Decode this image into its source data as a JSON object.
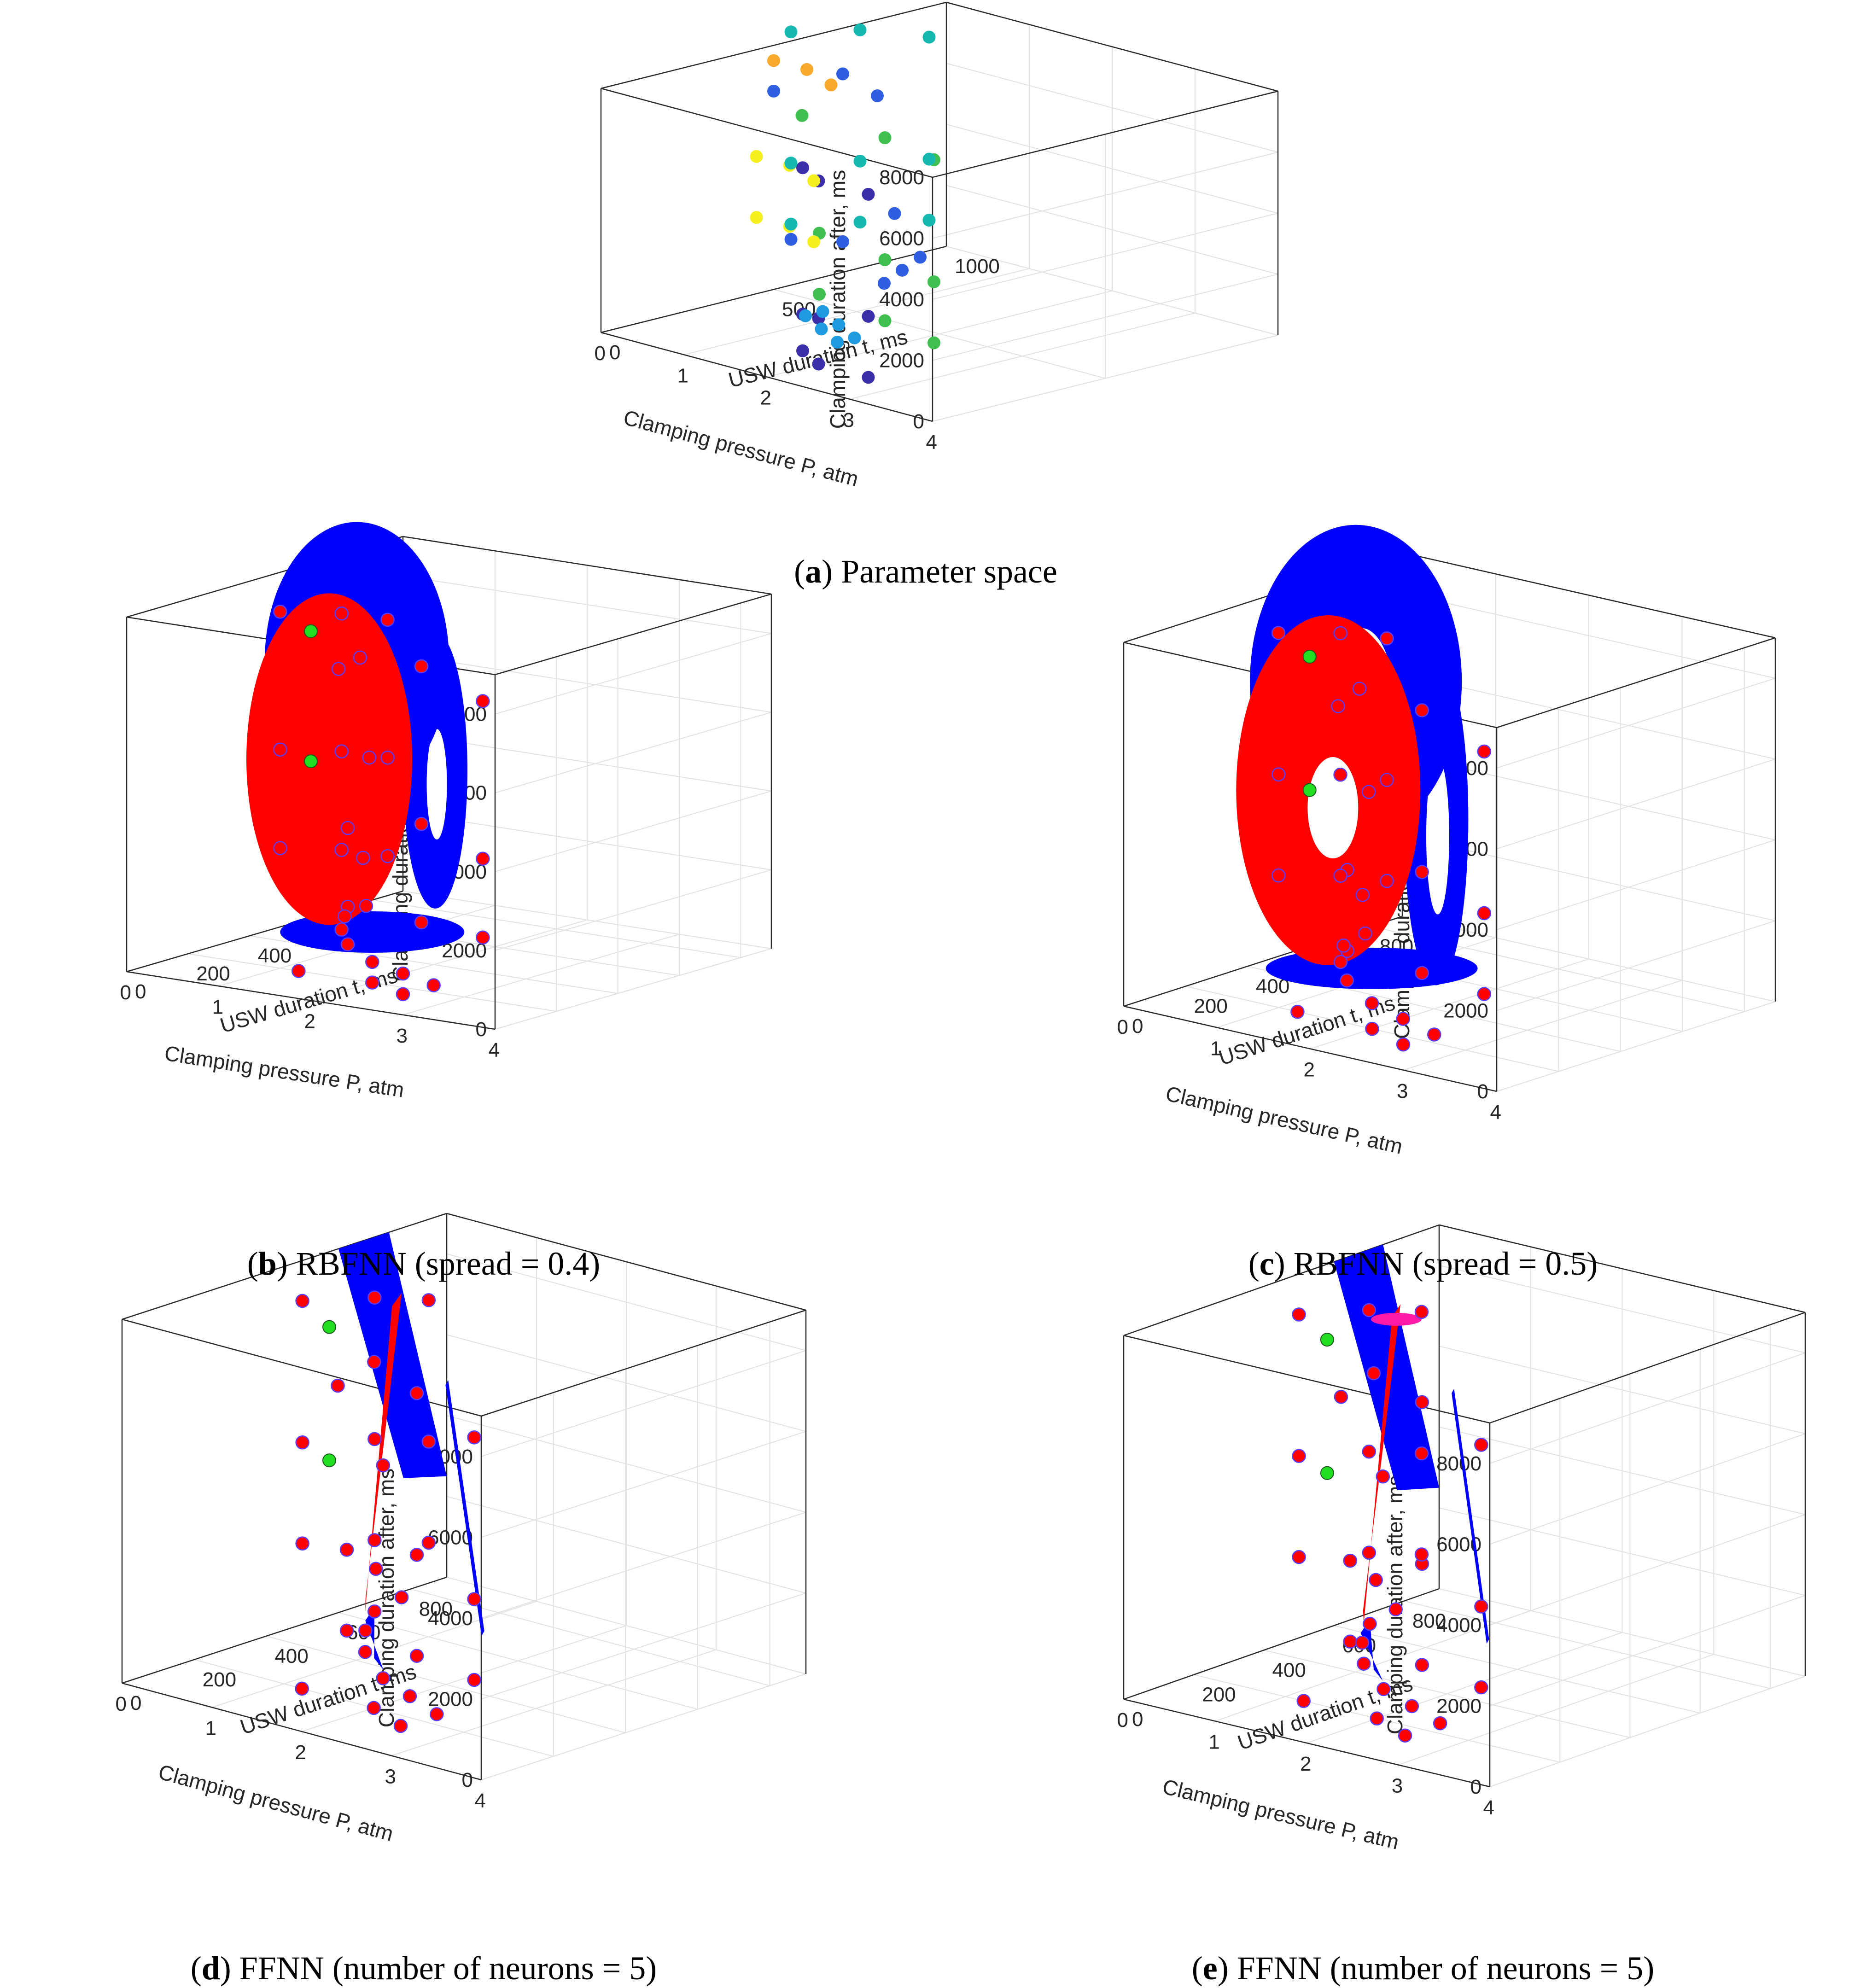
{
  "chart_data": [
    {
      "panel": "a",
      "type": "scatter",
      "caption": {
        "letter": "a",
        "text": "Parameter space"
      },
      "xlabel": "Clamping pressure P, atm",
      "ylabel": "USW duration t, ms",
      "zlabel": "Clamping duration after, ms",
      "xlim": [
        0,
        4
      ],
      "ylim": [
        0,
        1000
      ],
      "zlim": [
        0,
        8000
      ],
      "xticks": [
        "0",
        "1",
        "2",
        "3",
        "4"
      ],
      "yticks": [
        "0",
        "500",
        "1000"
      ],
      "zticks": [
        "0",
        "2000",
        "4000",
        "6000",
        "8000"
      ],
      "grid": true,
      "points": [
        {
          "x": 3.6,
          "y": 100,
          "z": 8000,
          "c": "#3fbf4f"
        },
        {
          "x": 2.8,
          "y": 150,
          "z": 8000,
          "c": "#3fbf4f"
        },
        {
          "x": 1.8,
          "y": 150,
          "z": 8000,
          "c": "#3fbf4f"
        },
        {
          "x": 3.6,
          "y": 100,
          "z": 4000,
          "c": "#3fbf4f"
        },
        {
          "x": 2.8,
          "y": 150,
          "z": 4000,
          "c": "#3fbf4f"
        },
        {
          "x": 1.8,
          "y": 200,
          "z": 4000,
          "c": "#3fbf4f"
        },
        {
          "x": 3.6,
          "y": 100,
          "z": 2000,
          "c": "#3fbf4f"
        },
        {
          "x": 2.8,
          "y": 150,
          "z": 2000,
          "c": "#3fbf4f"
        },
        {
          "x": 1.8,
          "y": 200,
          "z": 2000,
          "c": "#3fbf4f"
        },
        {
          "x": 2.6,
          "y": 150,
          "z": 6000,
          "c": "#3a2fa8"
        },
        {
          "x": 2.0,
          "y": 150,
          "z": 6000,
          "c": "#3a2fa8"
        },
        {
          "x": 1.6,
          "y": 200,
          "z": 6000,
          "c": "#3a2fa8"
        },
        {
          "x": 2.6,
          "y": 150,
          "z": 2000,
          "c": "#3a2fa8"
        },
        {
          "x": 2.0,
          "y": 150,
          "z": 1500,
          "c": "#3a2fa8"
        },
        {
          "x": 1.6,
          "y": 200,
          "z": 1200,
          "c": "#3a2fa8"
        },
        {
          "x": 2.6,
          "y": 150,
          "z": 0,
          "c": "#3a2fa8"
        },
        {
          "x": 2.0,
          "y": 150,
          "z": 0,
          "c": "#3a2fa8"
        },
        {
          "x": 1.6,
          "y": 200,
          "z": 0,
          "c": "#3a2fa8"
        },
        {
          "x": 0.9,
          "y": 450,
          "z": 7500,
          "c": "#f9a92b"
        },
        {
          "x": 0.4,
          "y": 500,
          "z": 7500,
          "c": "#f9a92b"
        },
        {
          "x": 0.0,
          "y": 500,
          "z": 7500,
          "c": "#f9a92b"
        },
        {
          "x": 0.9,
          "y": 400,
          "z": 4500,
          "c": "#f7f020"
        },
        {
          "x": 0.4,
          "y": 450,
          "z": 4500,
          "c": "#f7f020"
        },
        {
          "x": 0.0,
          "y": 450,
          "z": 4500,
          "c": "#f7f020"
        },
        {
          "x": 0.9,
          "y": 400,
          "z": 2500,
          "c": "#f7f020"
        },
        {
          "x": 0.4,
          "y": 450,
          "z": 2500,
          "c": "#f7f020"
        },
        {
          "x": 0.0,
          "y": 450,
          "z": 2500,
          "c": "#f7f020"
        },
        {
          "x": 1.6,
          "y": 300,
          "z": 0,
          "c": "#1e9be0"
        },
        {
          "x": 1.2,
          "y": 350,
          "z": 0,
          "c": "#1e9be0"
        },
        {
          "x": 0.8,
          "y": 400,
          "z": 0,
          "c": "#1e9be0"
        },
        {
          "x": 1.6,
          "y": 350,
          "z": 0,
          "c": "#1e9be0"
        },
        {
          "x": 1.2,
          "y": 400,
          "z": 0,
          "c": "#1e9be0"
        },
        {
          "x": 0.8,
          "y": 450,
          "z": 0,
          "c": "#1e9be0"
        },
        {
          "x": 0.0,
          "y": 500,
          "z": 6500,
          "c": "#2f5fe0"
        },
        {
          "x": 0.0,
          "y": 700,
          "z": 6500,
          "c": "#2f5fe0"
        },
        {
          "x": 0.0,
          "y": 800,
          "z": 5500,
          "c": "#2f5fe0"
        },
        {
          "x": 0.0,
          "y": 550,
          "z": 1500,
          "c": "#2f5fe0"
        },
        {
          "x": 0.0,
          "y": 700,
          "z": 1000,
          "c": "#2f5fe0"
        },
        {
          "x": 0.0,
          "y": 850,
          "z": 1500,
          "c": "#2f5fe0"
        },
        {
          "x": 0.5,
          "y": 700,
          "z": 0,
          "c": "#2f5fe0"
        },
        {
          "x": 0.3,
          "y": 800,
          "z": 0,
          "c": "#2f5fe0"
        },
        {
          "x": 0.1,
          "y": 900,
          "z": 0,
          "c": "#2f5fe0"
        },
        {
          "x": 0.0,
          "y": 550,
          "z": 8300,
          "c": "#16b8b0"
        },
        {
          "x": 0.0,
          "y": 750,
          "z": 7800,
          "c": "#16b8b0"
        },
        {
          "x": 0.0,
          "y": 950,
          "z": 7000,
          "c": "#16b8b0"
        },
        {
          "x": 0.0,
          "y": 550,
          "z": 4000,
          "c": "#16b8b0"
        },
        {
          "x": 0.0,
          "y": 750,
          "z": 3500,
          "c": "#16b8b0"
        },
        {
          "x": 0.0,
          "y": 950,
          "z": 3000,
          "c": "#16b8b0"
        },
        {
          "x": 0.0,
          "y": 550,
          "z": 2000,
          "c": "#16b8b0"
        },
        {
          "x": 0.0,
          "y": 750,
          "z": 1500,
          "c": "#16b8b0"
        },
        {
          "x": 0.0,
          "y": 950,
          "z": 1000,
          "c": "#16b8b0"
        }
      ]
    },
    {
      "panel": "b",
      "type": "scatter",
      "caption": {
        "letter": "b",
        "text": "RBFNN (spread = 0.4)"
      },
      "xlabel": "Clamping pressure P, atm",
      "ylabel": "USW duration t, ms",
      "zlabel": "Clamping duration after, ms",
      "xlim": [
        0,
        4
      ],
      "ylim": [
        0,
        900
      ],
      "zlim": [
        0,
        9000
      ],
      "xticks": [
        "0",
        "1",
        "2",
        "3",
        "4"
      ],
      "yticks": [
        "0",
        "200",
        "400",
        "600",
        "800"
      ],
      "zticks": [
        "0",
        "2000",
        "4000",
        "6000",
        "8000"
      ],
      "grid": true,
      "surface_colors": {
        "inner": "#ff0000",
        "outer": "#0000ff"
      },
      "points_color": "#ff0000",
      "highlight_color": "#22dd22"
    },
    {
      "panel": "c",
      "type": "scatter",
      "caption": {
        "letter": "c",
        "text": "RBFNN (spread = 0.5)"
      },
      "xlabel": "Clamping pressure P, atm",
      "ylabel": "USW duration t, ms",
      "zlabel": "Clamping duration after, ms",
      "xlim": [
        0,
        4
      ],
      "ylim": [
        0,
        900
      ],
      "zlim": [
        0,
        9000
      ],
      "xticks": [
        "0",
        "1",
        "2",
        "3",
        "4"
      ],
      "yticks": [
        "0",
        "200",
        "400",
        "600",
        "800"
      ],
      "zticks": [
        "0",
        "2000",
        "4000",
        "6000",
        "8000"
      ],
      "grid": true,
      "surface_colors": {
        "inner": "#ff0000",
        "outer": "#0000ff"
      },
      "points_color": "#ff0000",
      "highlight_color": "#22dd22"
    },
    {
      "panel": "d",
      "type": "scatter",
      "caption": {
        "letter": "d",
        "text": "FFNN (number of neurons = 5)"
      },
      "xlabel": "Clamping pressure P, atm",
      "ylabel": "USW duration t, ms",
      "zlabel": "Clamping duration after, ms",
      "xlim": [
        0,
        4
      ],
      "ylim": [
        0,
        900
      ],
      "zlim": [
        0,
        9000
      ],
      "xticks": [
        "0",
        "1",
        "2",
        "3",
        "4"
      ],
      "yticks": [
        "0",
        "200",
        "400",
        "600",
        "800"
      ],
      "zticks": [
        "0",
        "2000",
        "4000",
        "6000",
        "8000"
      ],
      "grid": true,
      "surface_colors": {
        "inner": "#ff0000",
        "outer": "#0000ff"
      },
      "points_color": "#ff0000",
      "highlight_color": "#22dd22"
    },
    {
      "panel": "e",
      "type": "scatter",
      "caption": {
        "letter": "e",
        "text": "FFNN (number of neurons = 5)"
      },
      "xlabel": "Clamping pressure P, atm",
      "ylabel": "USW duration t, ms",
      "zlabel": "Clamping duration after, ms",
      "xlim": [
        0,
        4
      ],
      "ylim": [
        0,
        900
      ],
      "zlim": [
        0,
        9000
      ],
      "xticks": [
        "0",
        "1",
        "2",
        "3",
        "4"
      ],
      "yticks": [
        "0",
        "200",
        "400",
        "600",
        "800"
      ],
      "zticks": [
        "0",
        "2000",
        "4000",
        "6000",
        "8000"
      ],
      "grid": true,
      "surface_colors": {
        "inner": "#ff0000",
        "outer": "#0000ff"
      },
      "points_color": "#ff0000",
      "highlight_color": "#22dd22"
    }
  ]
}
